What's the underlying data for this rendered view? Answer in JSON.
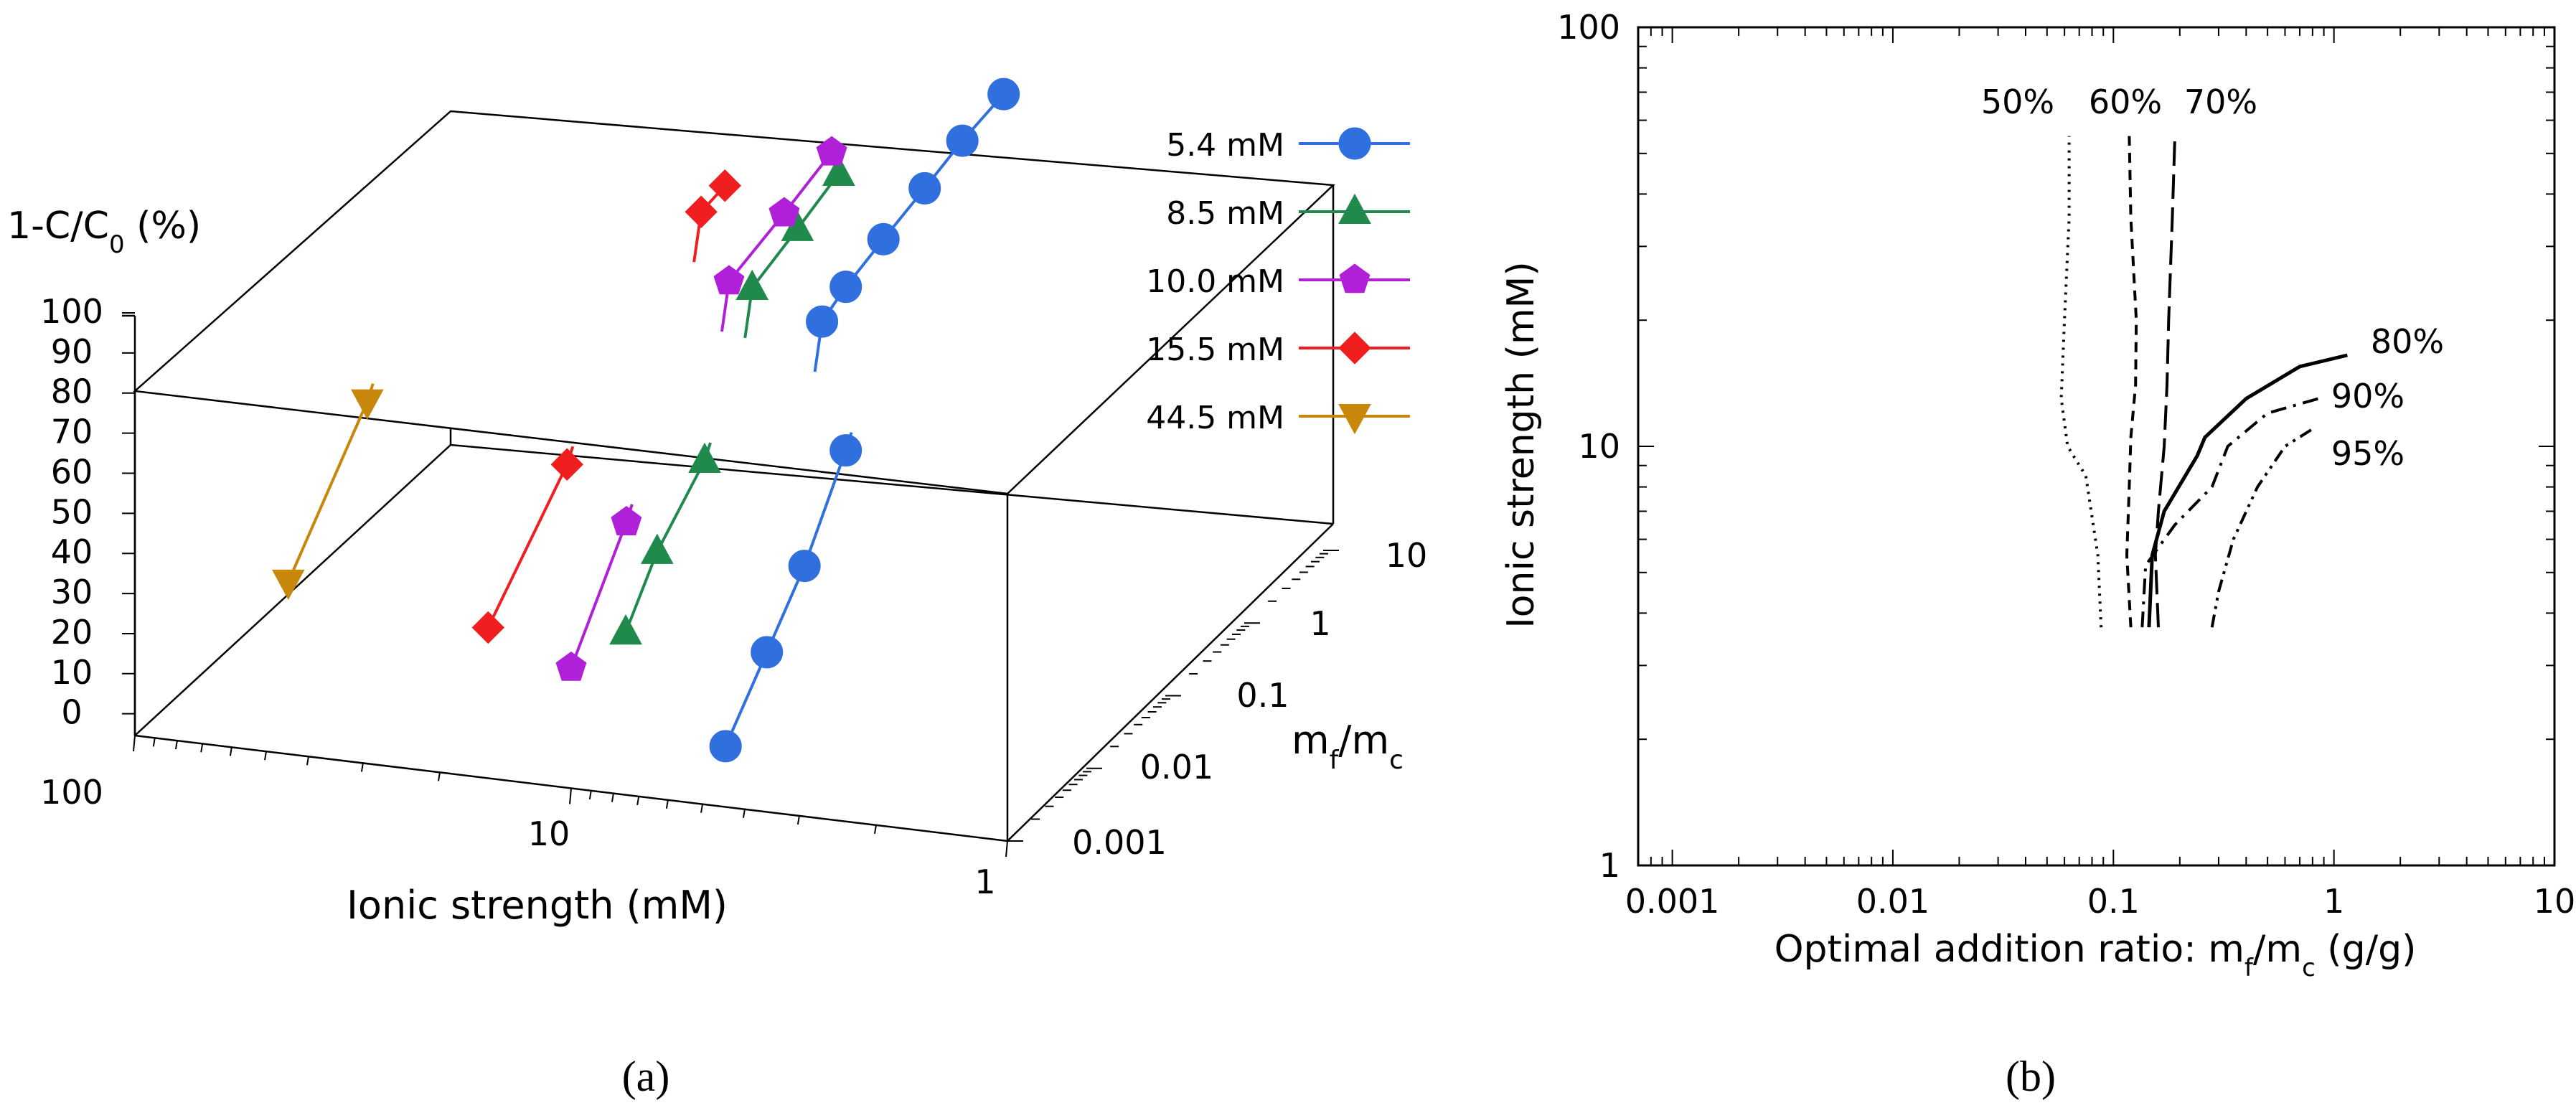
{
  "chart_data": [
    {
      "panel": "(a)",
      "type": "scatter",
      "title": "",
      "zlabel": "1-C/C₀ (%)",
      "xlabel": "Ionic strength (mM)",
      "ylabel": "m_f/m_c",
      "zlim": [
        0,
        100
      ],
      "z_ticks": [
        "100",
        "90",
        "80",
        "70",
        "60",
        "50",
        "40",
        "30",
        "20",
        "10",
        "0"
      ],
      "x_ticks": [
        "100",
        "10",
        "1"
      ],
      "y_ticks": [
        "10",
        "1",
        "0.1",
        "0.01",
        "0.001"
      ],
      "plane_level": 80,
      "series": [
        {
          "name": "5.4 mM",
          "color": "#2f6fde",
          "marker": "circle",
          "points_low": [
            [
              5.4,
              0.003,
              5
            ],
            [
              5.4,
              0.01,
              18
            ],
            [
              5.4,
              0.03,
              30
            ],
            [
              5.4,
              0.1,
              48
            ]
          ],
          "points_high": [
            [
              5.4,
              0.05,
              83
            ],
            [
              5.4,
              0.1,
              86
            ],
            [
              5.4,
              0.3,
              89
            ],
            [
              5.4,
              1,
              92
            ],
            [
              5.4,
              3,
              95
            ],
            [
              5.4,
              10,
              97
            ]
          ]
        },
        {
          "name": "8.5 mM",
          "color": "#1f8a4c",
          "marker": "triangle-up",
          "points_low": [
            [
              8.5,
              0.002,
              32
            ],
            [
              8.5,
              0.005,
              44
            ],
            [
              8.5,
              0.02,
              55
            ]
          ],
          "points_high": [
            [
              8.5,
              0.08,
              85
            ],
            [
              8.5,
              0.3,
              89
            ],
            [
              8.5,
              1,
              93
            ]
          ]
        },
        {
          "name": "10.0 mM",
          "color": "#b020d8",
          "marker": "pentagon",
          "points_low": [
            [
              10.0,
              0.001,
              28
            ],
            [
              10.0,
              0.005,
              50
            ]
          ],
          "points_high": [
            [
              10.0,
              0.1,
              84
            ],
            [
              10.0,
              0.5,
              88
            ],
            [
              10.0,
              2,
              92
            ]
          ]
        },
        {
          "name": "15.5 mM",
          "color": "#f01e1e",
          "marker": "diamond",
          "points_low": [
            [
              15.5,
              0.001,
              35
            ],
            [
              15.5,
              0.01,
              56
            ]
          ],
          "points_high": [
            [
              15.5,
              0.5,
              86
            ],
            [
              15.5,
              1,
              87
            ]
          ]
        },
        {
          "name": "44.5 mM",
          "color": "#c8860a",
          "marker": "triangle-down",
          "points_low": [
            [
              44.5,
              0.001,
              40
            ],
            [
              44.5,
              0.01,
              65
            ]
          ],
          "points_high": []
        }
      ]
    },
    {
      "panel": "(b)",
      "type": "line",
      "title": "",
      "xlabel": "Optimal addition ratio: m_f/m_c (g/g)",
      "ylabel": "Ionic strength (mM)",
      "xscale": "log",
      "yscale": "log",
      "xlim": [
        0.0007,
        10
      ],
      "ylim": [
        1,
        100
      ],
      "x_ticks": [
        "0.001",
        "0.01",
        "0.1",
        "1",
        "10"
      ],
      "y_ticks": [
        "100",
        "10",
        "1"
      ],
      "series": [
        {
          "name": "50%",
          "style": "dotted",
          "label": "50%",
          "x": [
            0.088,
            0.085,
            0.075,
            0.062,
            0.058,
            0.06,
            0.063,
            0.063
          ],
          "y": [
            3.7,
            5.5,
            8.5,
            10,
            13,
            20,
            35,
            55
          ]
        },
        {
          "name": "60%",
          "style": "dashed",
          "label": "60%",
          "x": [
            0.12,
            0.115,
            0.118,
            0.12,
            0.126,
            0.127,
            0.12,
            0.118
          ],
          "y": [
            3.7,
            5.5,
            8,
            10.5,
            14,
            20,
            35,
            55
          ]
        },
        {
          "name": "70%",
          "style": "longdash",
          "label": "70%",
          "x": [
            0.16,
            0.155,
            0.16,
            0.17,
            0.175,
            0.178,
            0.185,
            0.19
          ],
          "y": [
            3.7,
            5.5,
            7,
            10,
            14,
            20,
            35,
            55
          ]
        },
        {
          "name": "80%",
          "style": "solid",
          "label": "80%",
          "x": [
            0.145,
            0.15,
            0.17,
            0.24,
            0.26,
            0.4,
            0.7,
            1.15
          ],
          "y": [
            3.7,
            5.5,
            7,
            9.5,
            10.5,
            13,
            15.5,
            16.5
          ]
        },
        {
          "name": "90%",
          "style": "dashdot",
          "label": "90%",
          "x": [
            0.135,
            0.14,
            0.19,
            0.28,
            0.33,
            0.5,
            0.85
          ],
          "y": [
            3.7,
            5.2,
            6.5,
            8,
            10,
            12,
            13
          ]
        },
        {
          "name": "95%",
          "style": "dashdotdot",
          "label": "95%",
          "x": [
            0.28,
            0.3,
            0.35,
            0.45,
            0.6,
            0.8
          ],
          "y": [
            3.7,
            4.5,
            6,
            8,
            10,
            11
          ]
        }
      ]
    }
  ],
  "panel_labels": {
    "a": "(a)",
    "b": "(b)"
  }
}
